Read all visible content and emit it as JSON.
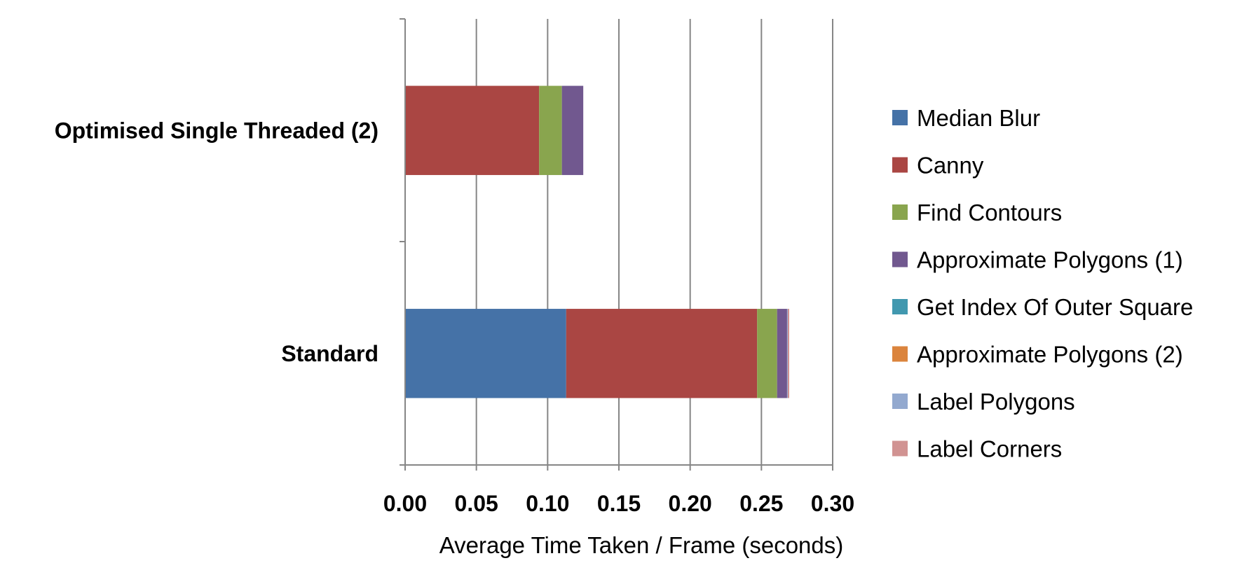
{
  "chart_data": {
    "type": "bar",
    "orientation": "horizontal",
    "stacked": true,
    "categories": [
      "Optimised Single Threaded (2)",
      "Standard"
    ],
    "series": [
      {
        "name": "Median Blur",
        "color": "#4572A7",
        "values": [
          0.0,
          0.113
        ]
      },
      {
        "name": "Canny",
        "color": "#AA4643",
        "values": [
          0.094,
          0.134
        ]
      },
      {
        "name": "Find Contours",
        "color": "#89A54E",
        "values": [
          0.016,
          0.014
        ]
      },
      {
        "name": "Approximate Polygons (1)",
        "color": "#71588F",
        "values": [
          0.015,
          0.007
        ]
      },
      {
        "name": "Get Index Of Outer Square",
        "color": "#4198AF",
        "values": [
          0.0,
          0.0
        ]
      },
      {
        "name": "Approximate Polygons (2)",
        "color": "#DB843D",
        "values": [
          0.0,
          0.0
        ]
      },
      {
        "name": "Label Polygons",
        "color": "#93A9CF",
        "values": [
          0.0,
          0.0005
        ]
      },
      {
        "name": "Label Corners",
        "color": "#D19392",
        "values": [
          0.0,
          0.001
        ]
      }
    ],
    "xlabel": "Average Time Taken / Frame (seconds)",
    "xlim": [
      0,
      0.3
    ],
    "xticks": [
      "0.00",
      "0.05",
      "0.10",
      "0.15",
      "0.20",
      "0.25",
      "0.30"
    ],
    "grid": "vertical",
    "legend": "right"
  }
}
